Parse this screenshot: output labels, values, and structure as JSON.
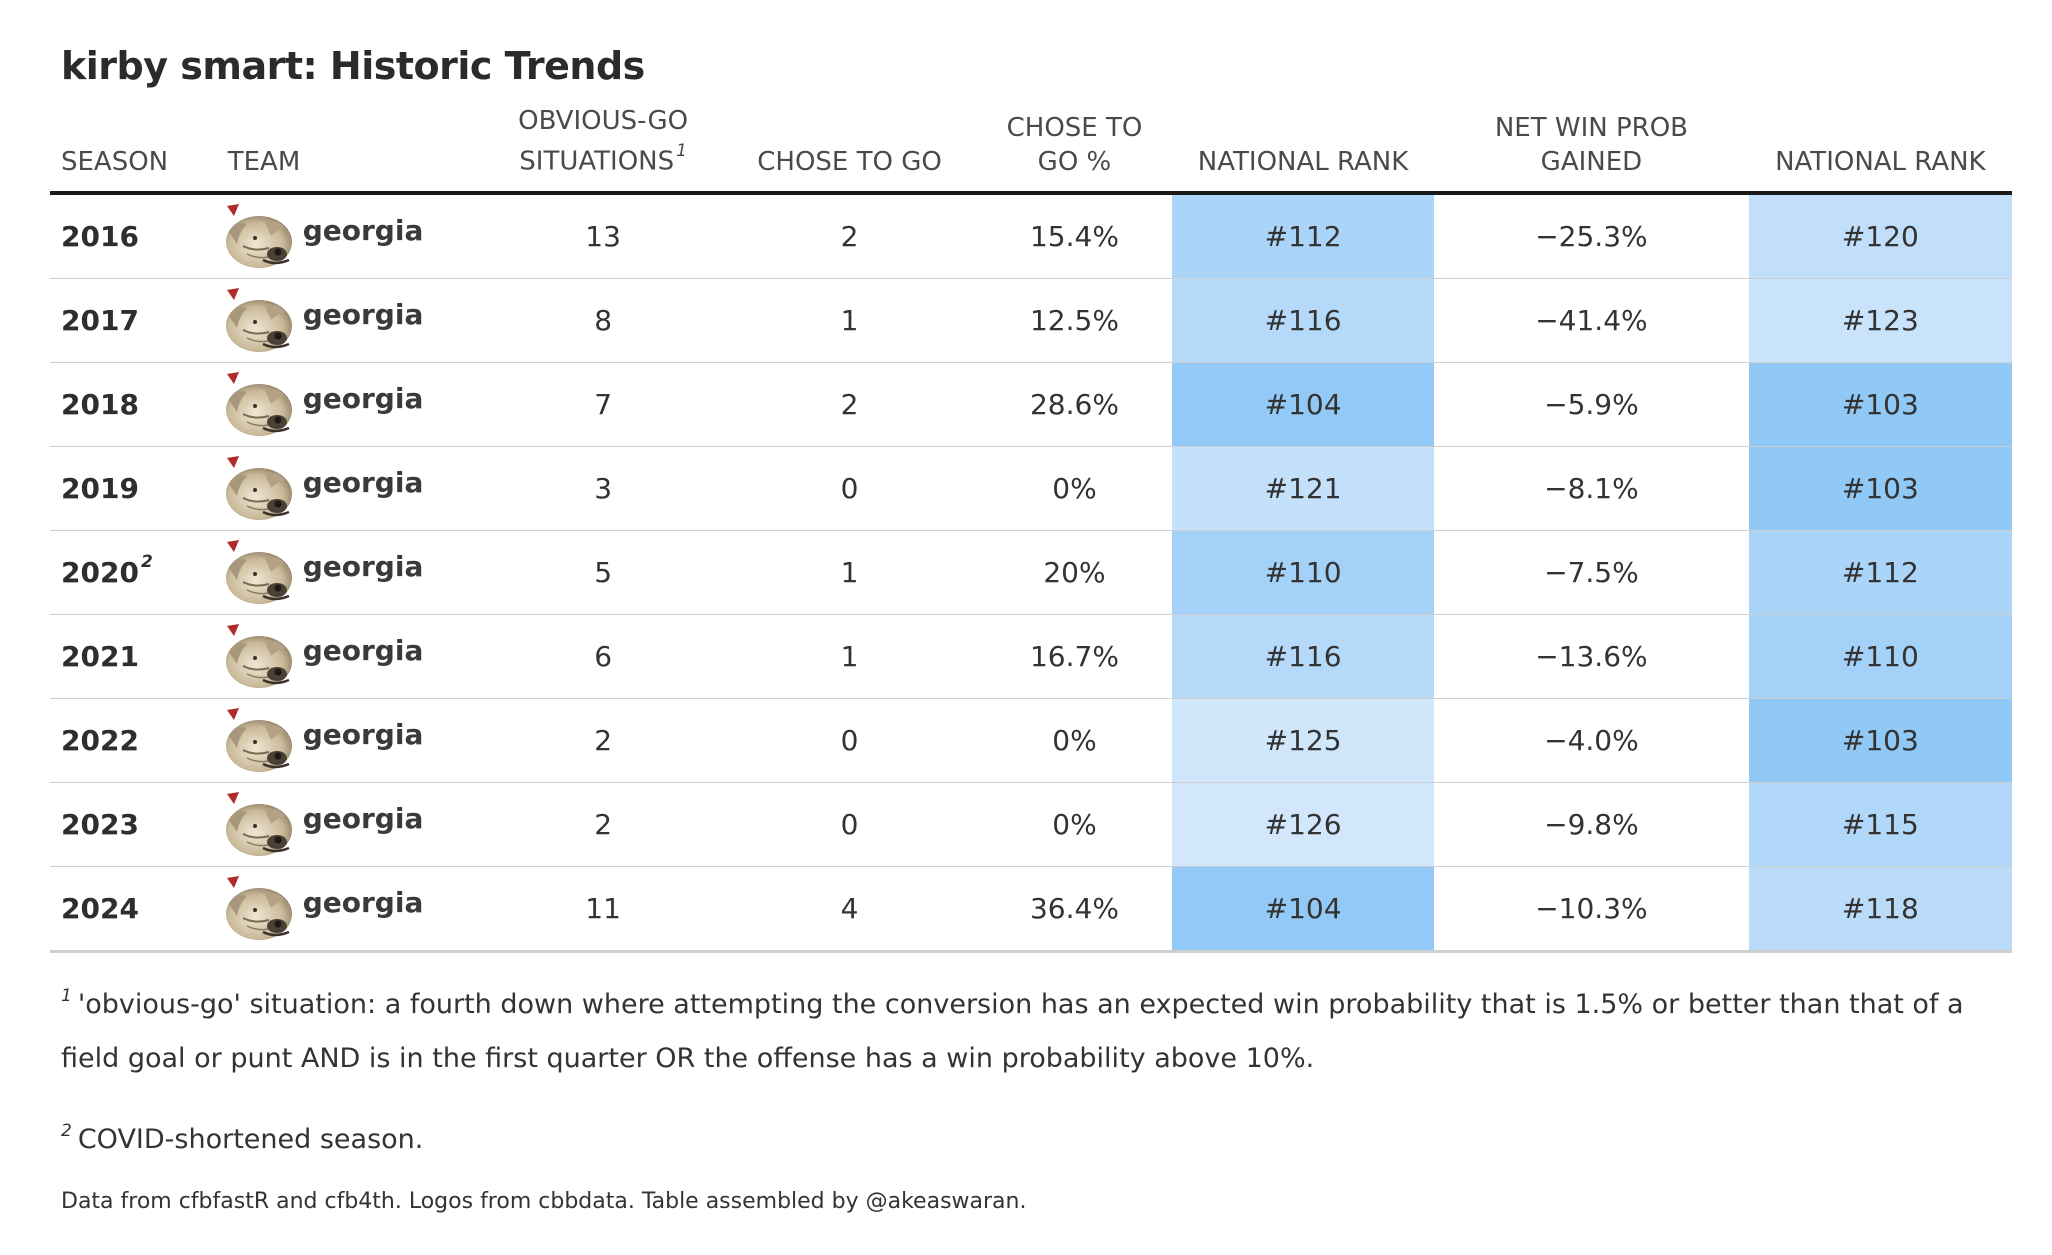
{
  "title": "kirby smart: Historic Trends",
  "chart_data": {
    "type": "table",
    "columns": [
      {
        "key": "season",
        "label": "SEASON"
      },
      {
        "key": "team",
        "label": "TEAM"
      },
      {
        "key": "obvious_go",
        "label": "OBVIOUS-GO SITUATIONS",
        "footnote": "1"
      },
      {
        "key": "chose_to_go",
        "label": "CHOSE TO GO"
      },
      {
        "key": "chose_pct",
        "label": "CHOSE TO GO %"
      },
      {
        "key": "rank_go",
        "label": "NATIONAL RANK"
      },
      {
        "key": "net_wp",
        "label": "NET WIN PROB GAINED"
      },
      {
        "key": "rank_wp",
        "label": "NATIONAL RANK"
      }
    ],
    "rows": [
      {
        "season": "2016",
        "season_note": "",
        "team": "georgia",
        "obvious_go": "13",
        "chose_to_go": "2",
        "chose_pct": "15.4%",
        "rank_go": "#112",
        "rank_go_value": 112,
        "net_wp": "−25.3%",
        "rank_wp": "#120",
        "rank_wp_value": 120
      },
      {
        "season": "2017",
        "season_note": "",
        "team": "georgia",
        "obvious_go": "8",
        "chose_to_go": "1",
        "chose_pct": "12.5%",
        "rank_go": "#116",
        "rank_go_value": 116,
        "net_wp": "−41.4%",
        "rank_wp": "#123",
        "rank_wp_value": 123
      },
      {
        "season": "2018",
        "season_note": "",
        "team": "georgia",
        "obvious_go": "7",
        "chose_to_go": "2",
        "chose_pct": "28.6%",
        "rank_go": "#104",
        "rank_go_value": 104,
        "net_wp": "−5.9%",
        "rank_wp": "#103",
        "rank_wp_value": 103
      },
      {
        "season": "2019",
        "season_note": "",
        "team": "georgia",
        "obvious_go": "3",
        "chose_to_go": "0",
        "chose_pct": "0%",
        "rank_go": "#121",
        "rank_go_value": 121,
        "net_wp": "−8.1%",
        "rank_wp": "#103",
        "rank_wp_value": 103
      },
      {
        "season": "2020",
        "season_note": "2",
        "team": "georgia",
        "obvious_go": "5",
        "chose_to_go": "1",
        "chose_pct": "20%",
        "rank_go": "#110",
        "rank_go_value": 110,
        "net_wp": "−7.5%",
        "rank_wp": "#112",
        "rank_wp_value": 112
      },
      {
        "season": "2021",
        "season_note": "",
        "team": "georgia",
        "obvious_go": "6",
        "chose_to_go": "1",
        "chose_pct": "16.7%",
        "rank_go": "#116",
        "rank_go_value": 116,
        "net_wp": "−13.6%",
        "rank_wp": "#110",
        "rank_wp_value": 110
      },
      {
        "season": "2022",
        "season_note": "",
        "team": "georgia",
        "obvious_go": "2",
        "chose_to_go": "0",
        "chose_pct": "0%",
        "rank_go": "#125",
        "rank_go_value": 125,
        "net_wp": "−4.0%",
        "rank_wp": "#103",
        "rank_wp_value": 103
      },
      {
        "season": "2023",
        "season_note": "",
        "team": "georgia",
        "obvious_go": "2",
        "chose_to_go": "0",
        "chose_pct": "0%",
        "rank_go": "#126",
        "rank_go_value": 126,
        "net_wp": "−9.8%",
        "rank_wp": "#115",
        "rank_wp_value": 115
      },
      {
        "season": "2024",
        "season_note": "",
        "team": "georgia",
        "obvious_go": "11",
        "chose_to_go": "4",
        "chose_pct": "36.4%",
        "rank_go": "#104",
        "rank_go_value": 104,
        "net_wp": "−10.3%",
        "rank_wp": "#118",
        "rank_wp_value": 118
      }
    ],
    "rank_color_scale": {
      "best": "#90c8f6",
      "worst": "#d2e7fb"
    }
  },
  "footnotes": [
    {
      "mark": "1",
      "text": "'obvious-go' situation: a fourth down where attempting the conversion has an expected win probability that is 1.5% or better than that of a field goal or punt AND is in the first quarter OR the offense has a win probability above 10%."
    },
    {
      "mark": "2",
      "text": "COVID-shortened season."
    }
  ],
  "source": "Data from cfbfastR and cfb4th. Logos from cbbdata. Table assembled by @akeaswaran.",
  "logo_icon": "bulldog-icon"
}
